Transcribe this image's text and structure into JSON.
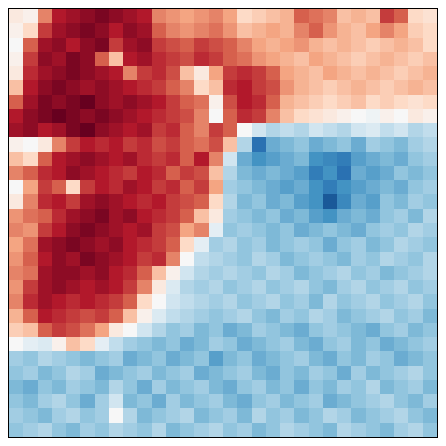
{
  "chart_data": {
    "type": "heatmap",
    "color": "RdBu_r",
    "tick_labels": false,
    "grid": false,
    "zlim": [
      -1,
      1
    ],
    "z": [
      [
        0.1,
        0.05,
        0.5,
        0.8,
        0.85,
        0.9,
        0.95,
        0.9,
        0.85,
        0.8,
        0.5,
        0.45,
        0.4,
        0.45,
        0.5,
        0.4,
        0.2,
        0.25,
        0.3,
        0.35,
        0.6,
        0.55,
        0.5,
        0.3,
        0.35,
        0.3,
        0.7,
        0.6,
        0.2,
        0.15
      ],
      [
        0.05,
        0.2,
        0.7,
        0.85,
        0.9,
        0.95,
        0.9,
        0.8,
        0.9,
        0.85,
        0.6,
        0.5,
        0.45,
        0.5,
        0.55,
        0.45,
        0.3,
        0.35,
        0.4,
        0.35,
        0.5,
        0.6,
        0.45,
        0.35,
        0.3,
        0.4,
        0.5,
        0.4,
        0.25,
        0.2
      ],
      [
        0.0,
        0.6,
        0.85,
        0.9,
        0.8,
        0.9,
        0.95,
        0.7,
        0.85,
        0.9,
        0.7,
        0.65,
        0.6,
        0.7,
        0.65,
        0.6,
        0.5,
        0.4,
        0.35,
        0.4,
        0.45,
        0.35,
        0.3,
        0.35,
        0.3,
        0.25,
        0.3,
        0.35,
        0.3,
        0.2
      ],
      [
        0.05,
        0.7,
        0.9,
        0.85,
        0.95,
        0.9,
        0.6,
        0.3,
        0.8,
        0.85,
        0.75,
        0.7,
        0.65,
        0.75,
        0.7,
        0.6,
        0.55,
        0.45,
        0.4,
        0.35,
        0.3,
        0.4,
        0.35,
        0.3,
        0.25,
        0.3,
        0.35,
        0.3,
        0.25,
        0.3
      ],
      [
        0.1,
        0.75,
        0.85,
        0.9,
        0.95,
        0.9,
        0.85,
        0.8,
        0.5,
        0.7,
        0.75,
        0.65,
        0.3,
        0.1,
        0.4,
        0.7,
        0.75,
        0.7,
        0.6,
        0.4,
        0.35,
        0.3,
        0.4,
        0.35,
        0.3,
        0.35,
        0.3,
        0.25,
        0.3,
        0.35
      ],
      [
        0.3,
        0.8,
        0.9,
        0.95,
        0.9,
        0.85,
        0.9,
        0.85,
        0.8,
        0.75,
        0.7,
        0.6,
        0.5,
        0.2,
        0.3,
        0.75,
        0.8,
        0.7,
        0.65,
        0.45,
        0.35,
        0.3,
        0.25,
        0.3,
        0.35,
        0.3,
        0.25,
        0.3,
        0.35,
        0.3
      ],
      [
        0.6,
        0.85,
        0.95,
        0.9,
        0.95,
        1.0,
        0.9,
        0.85,
        0.9,
        0.85,
        0.8,
        0.7,
        0.6,
        0.55,
        0.05,
        0.65,
        0.8,
        0.75,
        0.6,
        0.35,
        0.3,
        0.25,
        0.2,
        0.25,
        0.3,
        0.2,
        0.25,
        0.2,
        0.15,
        0.2
      ],
      [
        0.8,
        0.9,
        0.95,
        1.0,
        0.95,
        0.9,
        0.95,
        0.9,
        0.85,
        0.8,
        0.75,
        0.7,
        0.65,
        0.5,
        0.0,
        0.6,
        0.75,
        0.7,
        0.5,
        0.3,
        0.2,
        0.15,
        0.1,
        0.05,
        0.0,
        -0.05,
        0.05,
        0.0,
        0.1,
        0.05
      ],
      [
        0.85,
        0.9,
        0.8,
        0.85,
        0.95,
        1.0,
        0.9,
        0.85,
        0.8,
        0.85,
        0.7,
        0.75,
        0.6,
        0.5,
        0.7,
        0.6,
        0.0,
        -0.2,
        -0.3,
        -0.25,
        -0.3,
        -0.2,
        -0.25,
        -0.3,
        -0.2,
        -0.15,
        -0.25,
        -0.2,
        -0.3,
        -0.25
      ],
      [
        0.05,
        0.0,
        0.1,
        0.5,
        0.7,
        0.8,
        0.75,
        0.8,
        0.7,
        0.75,
        0.65,
        0.7,
        0.6,
        0.55,
        0.65,
        0.3,
        -0.3,
        -0.75,
        -0.5,
        -0.45,
        -0.4,
        -0.5,
        -0.45,
        -0.4,
        -0.5,
        -0.35,
        -0.4,
        -0.45,
        -0.35,
        -0.3
      ],
      [
        0.3,
        0.2,
        0.6,
        0.8,
        0.85,
        0.9,
        0.85,
        0.8,
        0.85,
        0.75,
        0.7,
        0.75,
        0.6,
        0.8,
        0.5,
        -0.2,
        -0.5,
        -0.6,
        -0.55,
        -0.5,
        -0.45,
        -0.6,
        -0.65,
        -0.7,
        -0.55,
        -0.5,
        -0.45,
        -0.5,
        -0.4,
        -0.35
      ],
      [
        0.5,
        0.6,
        0.75,
        0.8,
        0.9,
        0.85,
        0.8,
        0.75,
        0.7,
        0.8,
        0.75,
        0.6,
        0.7,
        0.65,
        0.3,
        -0.3,
        -0.45,
        -0.5,
        -0.45,
        -0.5,
        -0.55,
        -0.7,
        -0.6,
        -0.75,
        -0.5,
        -0.55,
        -0.5,
        -0.4,
        -0.45,
        -0.4
      ],
      [
        0.0,
        0.4,
        0.7,
        0.6,
        0.2,
        0.7,
        0.8,
        0.75,
        0.85,
        0.8,
        0.7,
        0.75,
        0.6,
        0.7,
        0.4,
        -0.35,
        -0.4,
        -0.45,
        -0.5,
        -0.55,
        -0.5,
        -0.6,
        -0.7,
        -0.6,
        -0.55,
        -0.5,
        -0.45,
        -0.5,
        -0.4,
        -0.35
      ],
      [
        0.1,
        0.5,
        0.75,
        0.8,
        0.7,
        0.85,
        0.9,
        0.85,
        0.8,
        0.75,
        0.8,
        0.7,
        0.65,
        0.6,
        0.2,
        -0.3,
        -0.45,
        -0.4,
        -0.5,
        -0.45,
        -0.55,
        -0.6,
        -0.85,
        -0.65,
        -0.5,
        -0.55,
        -0.4,
        -0.45,
        -0.35,
        -0.4
      ],
      [
        0.45,
        0.55,
        0.6,
        0.75,
        0.85,
        0.9,
        0.95,
        0.85,
        0.9,
        0.8,
        0.75,
        0.7,
        0.6,
        0.3,
        0.1,
        -0.35,
        -0.4,
        -0.45,
        -0.4,
        -0.5,
        -0.45,
        -0.55,
        -0.6,
        -0.5,
        -0.45,
        -0.5,
        -0.4,
        -0.35,
        -0.45,
        -0.3
      ],
      [
        0.5,
        0.45,
        0.7,
        0.8,
        0.9,
        0.95,
        0.9,
        0.85,
        0.8,
        0.85,
        0.7,
        0.65,
        0.4,
        0.5,
        -0.1,
        -0.4,
        -0.35,
        -0.4,
        -0.45,
        -0.4,
        -0.5,
        -0.45,
        -0.4,
        -0.45,
        -0.5,
        -0.4,
        -0.35,
        -0.4,
        -0.3,
        -0.35
      ],
      [
        0.4,
        0.55,
        0.85,
        0.9,
        0.95,
        0.9,
        0.85,
        0.9,
        0.8,
        0.75,
        0.7,
        0.6,
        0.2,
        -0.1,
        -0.35,
        -0.3,
        -0.4,
        -0.35,
        -0.45,
        -0.4,
        -0.35,
        -0.4,
        -0.5,
        -0.4,
        -0.35,
        -0.45,
        -0.4,
        -0.3,
        -0.35,
        -0.4
      ],
      [
        0.45,
        0.6,
        0.8,
        0.9,
        0.85,
        0.95,
        0.9,
        0.85,
        0.8,
        0.7,
        0.75,
        0.5,
        0.0,
        -0.25,
        -0.3,
        -0.35,
        -0.4,
        -0.3,
        -0.35,
        -0.45,
        -0.4,
        -0.35,
        -0.4,
        -0.45,
        -0.35,
        -0.4,
        -0.3,
        -0.35,
        -0.4,
        -0.3
      ],
      [
        0.5,
        0.55,
        0.85,
        0.9,
        0.9,
        0.85,
        0.9,
        0.8,
        0.75,
        0.6,
        0.3,
        0.05,
        -0.2,
        -0.3,
        -0.35,
        -0.3,
        -0.35,
        -0.4,
        -0.3,
        -0.35,
        -0.45,
        -0.4,
        -0.35,
        -0.3,
        -0.4,
        -0.35,
        -0.45,
        -0.4,
        -0.35,
        -0.3
      ],
      [
        0.45,
        0.7,
        0.85,
        0.9,
        0.85,
        0.8,
        0.85,
        0.8,
        0.7,
        0.5,
        0.1,
        -0.15,
        -0.3,
        -0.35,
        -0.3,
        -0.4,
        -0.35,
        -0.3,
        -0.4,
        -0.35,
        -0.3,
        -0.4,
        -0.45,
        -0.35,
        -0.3,
        -0.4,
        -0.35,
        -0.3,
        -0.4,
        -0.35
      ],
      [
        0.5,
        0.75,
        0.85,
        0.8,
        0.75,
        0.8,
        0.75,
        0.7,
        0.6,
        0.2,
        0.0,
        -0.2,
        -0.25,
        -0.3,
        -0.35,
        -0.3,
        -0.4,
        -0.35,
        -0.3,
        -0.4,
        -0.35,
        -0.45,
        -0.3,
        -0.4,
        -0.35,
        -0.3,
        -0.4,
        -0.35,
        -0.3,
        -0.4
      ],
      [
        0.35,
        0.6,
        0.8,
        0.75,
        0.7,
        0.65,
        0.7,
        0.6,
        0.3,
        0.05,
        -0.15,
        -0.25,
        -0.3,
        -0.35,
        -0.4,
        -0.35,
        -0.3,
        -0.4,
        -0.45,
        -0.35,
        -0.4,
        -0.3,
        -0.35,
        -0.45,
        -0.4,
        -0.35,
        -0.3,
        -0.4,
        -0.35,
        -0.45
      ],
      [
        0.25,
        0.3,
        0.6,
        0.7,
        0.65,
        0.55,
        0.4,
        0.1,
        0.0,
        -0.2,
        -0.3,
        -0.4,
        -0.35,
        -0.45,
        -0.4,
        -0.5,
        -0.45,
        -0.35,
        -0.4,
        -0.45,
        -0.5,
        -0.4,
        -0.35,
        -0.4,
        -0.45,
        -0.5,
        -0.4,
        -0.35,
        -0.45,
        -0.4
      ],
      [
        0.0,
        -0.1,
        -0.15,
        0.05,
        0.3,
        0.2,
        -0.1,
        -0.25,
        -0.35,
        -0.4,
        -0.45,
        -0.4,
        -0.5,
        -0.45,
        -0.35,
        -0.4,
        -0.5,
        -0.45,
        -0.4,
        -0.35,
        -0.45,
        -0.5,
        -0.4,
        -0.35,
        -0.45,
        -0.4,
        -0.5,
        -0.45,
        -0.4,
        -0.35
      ],
      [
        -0.35,
        -0.4,
        -0.3,
        -0.35,
        -0.4,
        -0.45,
        -0.4,
        -0.35,
        -0.5,
        -0.45,
        -0.4,
        -0.5,
        -0.45,
        -0.4,
        -0.55,
        -0.45,
        -0.4,
        -0.5,
        -0.45,
        -0.4,
        -0.35,
        -0.45,
        -0.5,
        -0.4,
        -0.45,
        -0.35,
        -0.4,
        -0.5,
        -0.45,
        -0.4
      ],
      [
        -0.4,
        -0.35,
        -0.45,
        -0.4,
        -0.3,
        -0.35,
        -0.5,
        -0.45,
        -0.4,
        -0.35,
        -0.45,
        -0.4,
        -0.35,
        -0.5,
        -0.45,
        -0.4,
        -0.35,
        -0.45,
        -0.5,
        -0.4,
        -0.45,
        -0.35,
        -0.4,
        -0.5,
        -0.35,
        -0.45,
        -0.4,
        -0.35,
        -0.3,
        -0.4
      ],
      [
        -0.45,
        -0.5,
        -0.4,
        -0.45,
        -0.35,
        -0.4,
        -0.45,
        -0.3,
        -0.4,
        -0.5,
        -0.35,
        -0.45,
        -0.4,
        -0.35,
        -0.45,
        -0.5,
        -0.4,
        -0.35,
        -0.45,
        -0.4,
        -0.5,
        -0.4,
        -0.45,
        -0.35,
        -0.4,
        -0.3,
        -0.45,
        -0.4,
        -0.35,
        -0.45
      ],
      [
        -0.4,
        -0.45,
        -0.35,
        -0.3,
        -0.4,
        -0.5,
        -0.35,
        -0.2,
        -0.45,
        -0.4,
        -0.5,
        -0.35,
        -0.45,
        -0.4,
        -0.35,
        -0.45,
        -0.5,
        -0.4,
        -0.35,
        -0.45,
        -0.4,
        -0.35,
        -0.5,
        -0.45,
        -0.4,
        -0.35,
        -0.3,
        -0.4,
        -0.45,
        -0.35
      ],
      [
        -0.35,
        -0.4,
        -0.45,
        -0.35,
        -0.3,
        -0.4,
        -0.35,
        0.0,
        -0.3,
        -0.45,
        -0.4,
        -0.35,
        -0.3,
        -0.45,
        -0.4,
        -0.35,
        -0.45,
        -0.3,
        -0.4,
        -0.35,
        -0.45,
        -0.4,
        -0.3,
        -0.35,
        -0.45,
        -0.4,
        -0.35,
        -0.3,
        -0.4,
        -0.45
      ],
      [
        -0.4,
        -0.35,
        -0.3,
        -0.4,
        -0.45,
        -0.35,
        -0.4,
        -0.3,
        -0.35,
        -0.4,
        -0.3,
        -0.45,
        -0.4,
        -0.35,
        -0.3,
        -0.4,
        -0.35,
        -0.45,
        -0.4,
        -0.3,
        -0.35,
        -0.4,
        -0.45,
        -0.3,
        -0.35,
        -0.4,
        -0.45,
        -0.35,
        -0.3,
        -0.4
      ]
    ]
  }
}
